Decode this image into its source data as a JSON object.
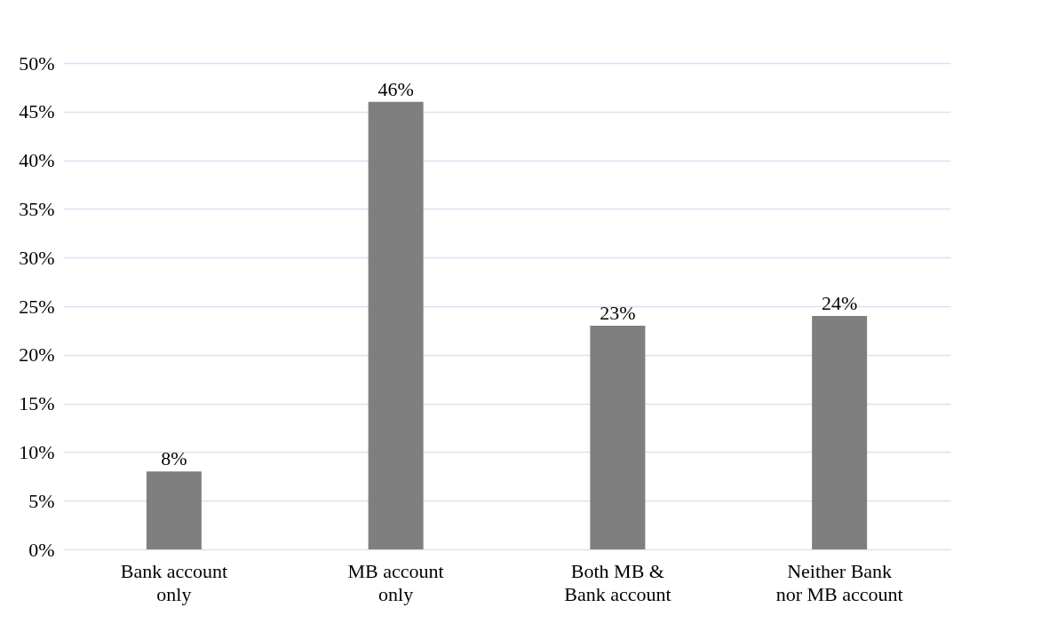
{
  "chart_data": {
    "type": "bar",
    "categories": [
      "Bank account\nonly",
      "MB account\nonly",
      "Both MB &\nBank account",
      "Neither Bank\nnor MB account"
    ],
    "values": [
      8,
      46,
      23,
      24
    ],
    "value_labels": [
      "8%",
      "46%",
      "23%",
      "24%"
    ],
    "color": "#7f7f7f",
    "ylim": [
      0,
      50
    ],
    "yticks": [
      {
        "value": 0,
        "label": "0%"
      },
      {
        "value": 5,
        "label": "5%"
      },
      {
        "value": 10,
        "label": "10%"
      },
      {
        "value": 15,
        "label": "15%"
      },
      {
        "value": 20,
        "label": "20%"
      },
      {
        "value": 25,
        "label": "25%"
      },
      {
        "value": 30,
        "label": "30%"
      },
      {
        "value": 35,
        "label": "35%"
      },
      {
        "value": 40,
        "label": "40%"
      },
      {
        "value": 45,
        "label": "45%"
      },
      {
        "value": 50,
        "label": "50%"
      }
    ],
    "grid": "y"
  }
}
